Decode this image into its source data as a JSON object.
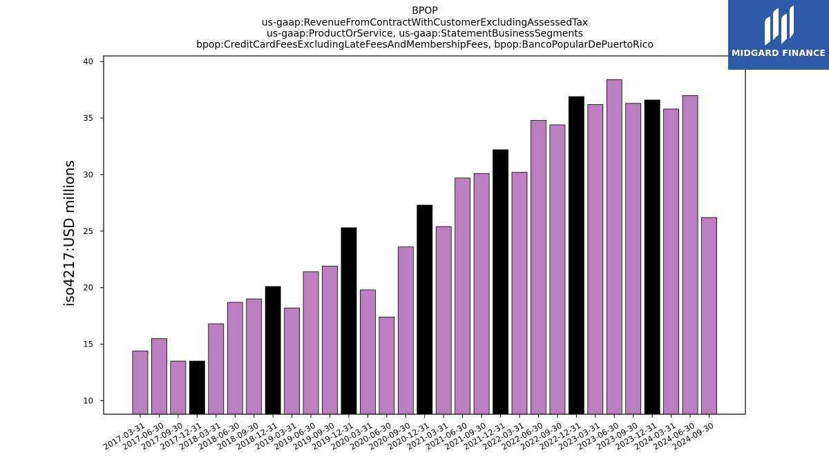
{
  "chart_data": {
    "type": "bar",
    "title_lines": [
      "BPOP",
      "us-gaap:RevenueFromContractWithCustomerExcludingAssessedTax",
      "us-gaap:ProductOrService, us-gaap:StatementBusinessSegments",
      "bpop:CreditCardFeesExcludingLateFeesAndMembershipFees, bpop:BancoPopularDePuertoRico"
    ],
    "ylabel": "iso4217:USD  millions",
    "xlabel": "",
    "ylim": [
      8.8,
      40.5
    ],
    "yticks": [
      10,
      15,
      20,
      25,
      30,
      35,
      40
    ],
    "categories": [
      "2017-03-31",
      "2017-06-30",
      "2017-09-30",
      "2017-12-31",
      "2018-03-31",
      "2018-06-30",
      "2018-09-30",
      "2018-12-31",
      "2019-03-31",
      "2019-06-30",
      "2019-09-30",
      "2019-12-31",
      "2020-03-31",
      "2020-06-30",
      "2020-09-30",
      "2020-12-31",
      "2021-03-31",
      "2021-06-30",
      "2021-09-30",
      "2021-12-31",
      "2022-03-31",
      "2022-06-30",
      "2022-09-30",
      "2022-12-31",
      "2023-03-31",
      "2023-06-30",
      "2023-09-30",
      "2023-12-31",
      "2024-03-31",
      "2024-06-30",
      "2024-09-30"
    ],
    "values": [
      14.4,
      15.5,
      13.5,
      13.5,
      16.8,
      18.7,
      19.0,
      20.1,
      18.2,
      21.4,
      21.9,
      25.3,
      19.8,
      17.4,
      23.6,
      27.3,
      25.4,
      29.7,
      30.1,
      32.2,
      30.2,
      34.8,
      34.4,
      36.9,
      36.2,
      38.4,
      36.3,
      36.6,
      35.8,
      37.0,
      26.2
    ],
    "year_end_flags": [
      false,
      false,
      false,
      true,
      false,
      false,
      false,
      true,
      false,
      false,
      false,
      true,
      false,
      false,
      false,
      true,
      false,
      false,
      false,
      true,
      false,
      false,
      false,
      true,
      false,
      false,
      false,
      true,
      false,
      false,
      false
    ],
    "colors": {
      "quarter": "#bb7fbf",
      "year_end": "#000000",
      "edge": "#000000"
    },
    "grid": false,
    "legend": "none"
  },
  "logo": {
    "text": "MIDGARD FINANCE",
    "icon": "midgard-logo-mark",
    "background": "#2e5aa8"
  }
}
